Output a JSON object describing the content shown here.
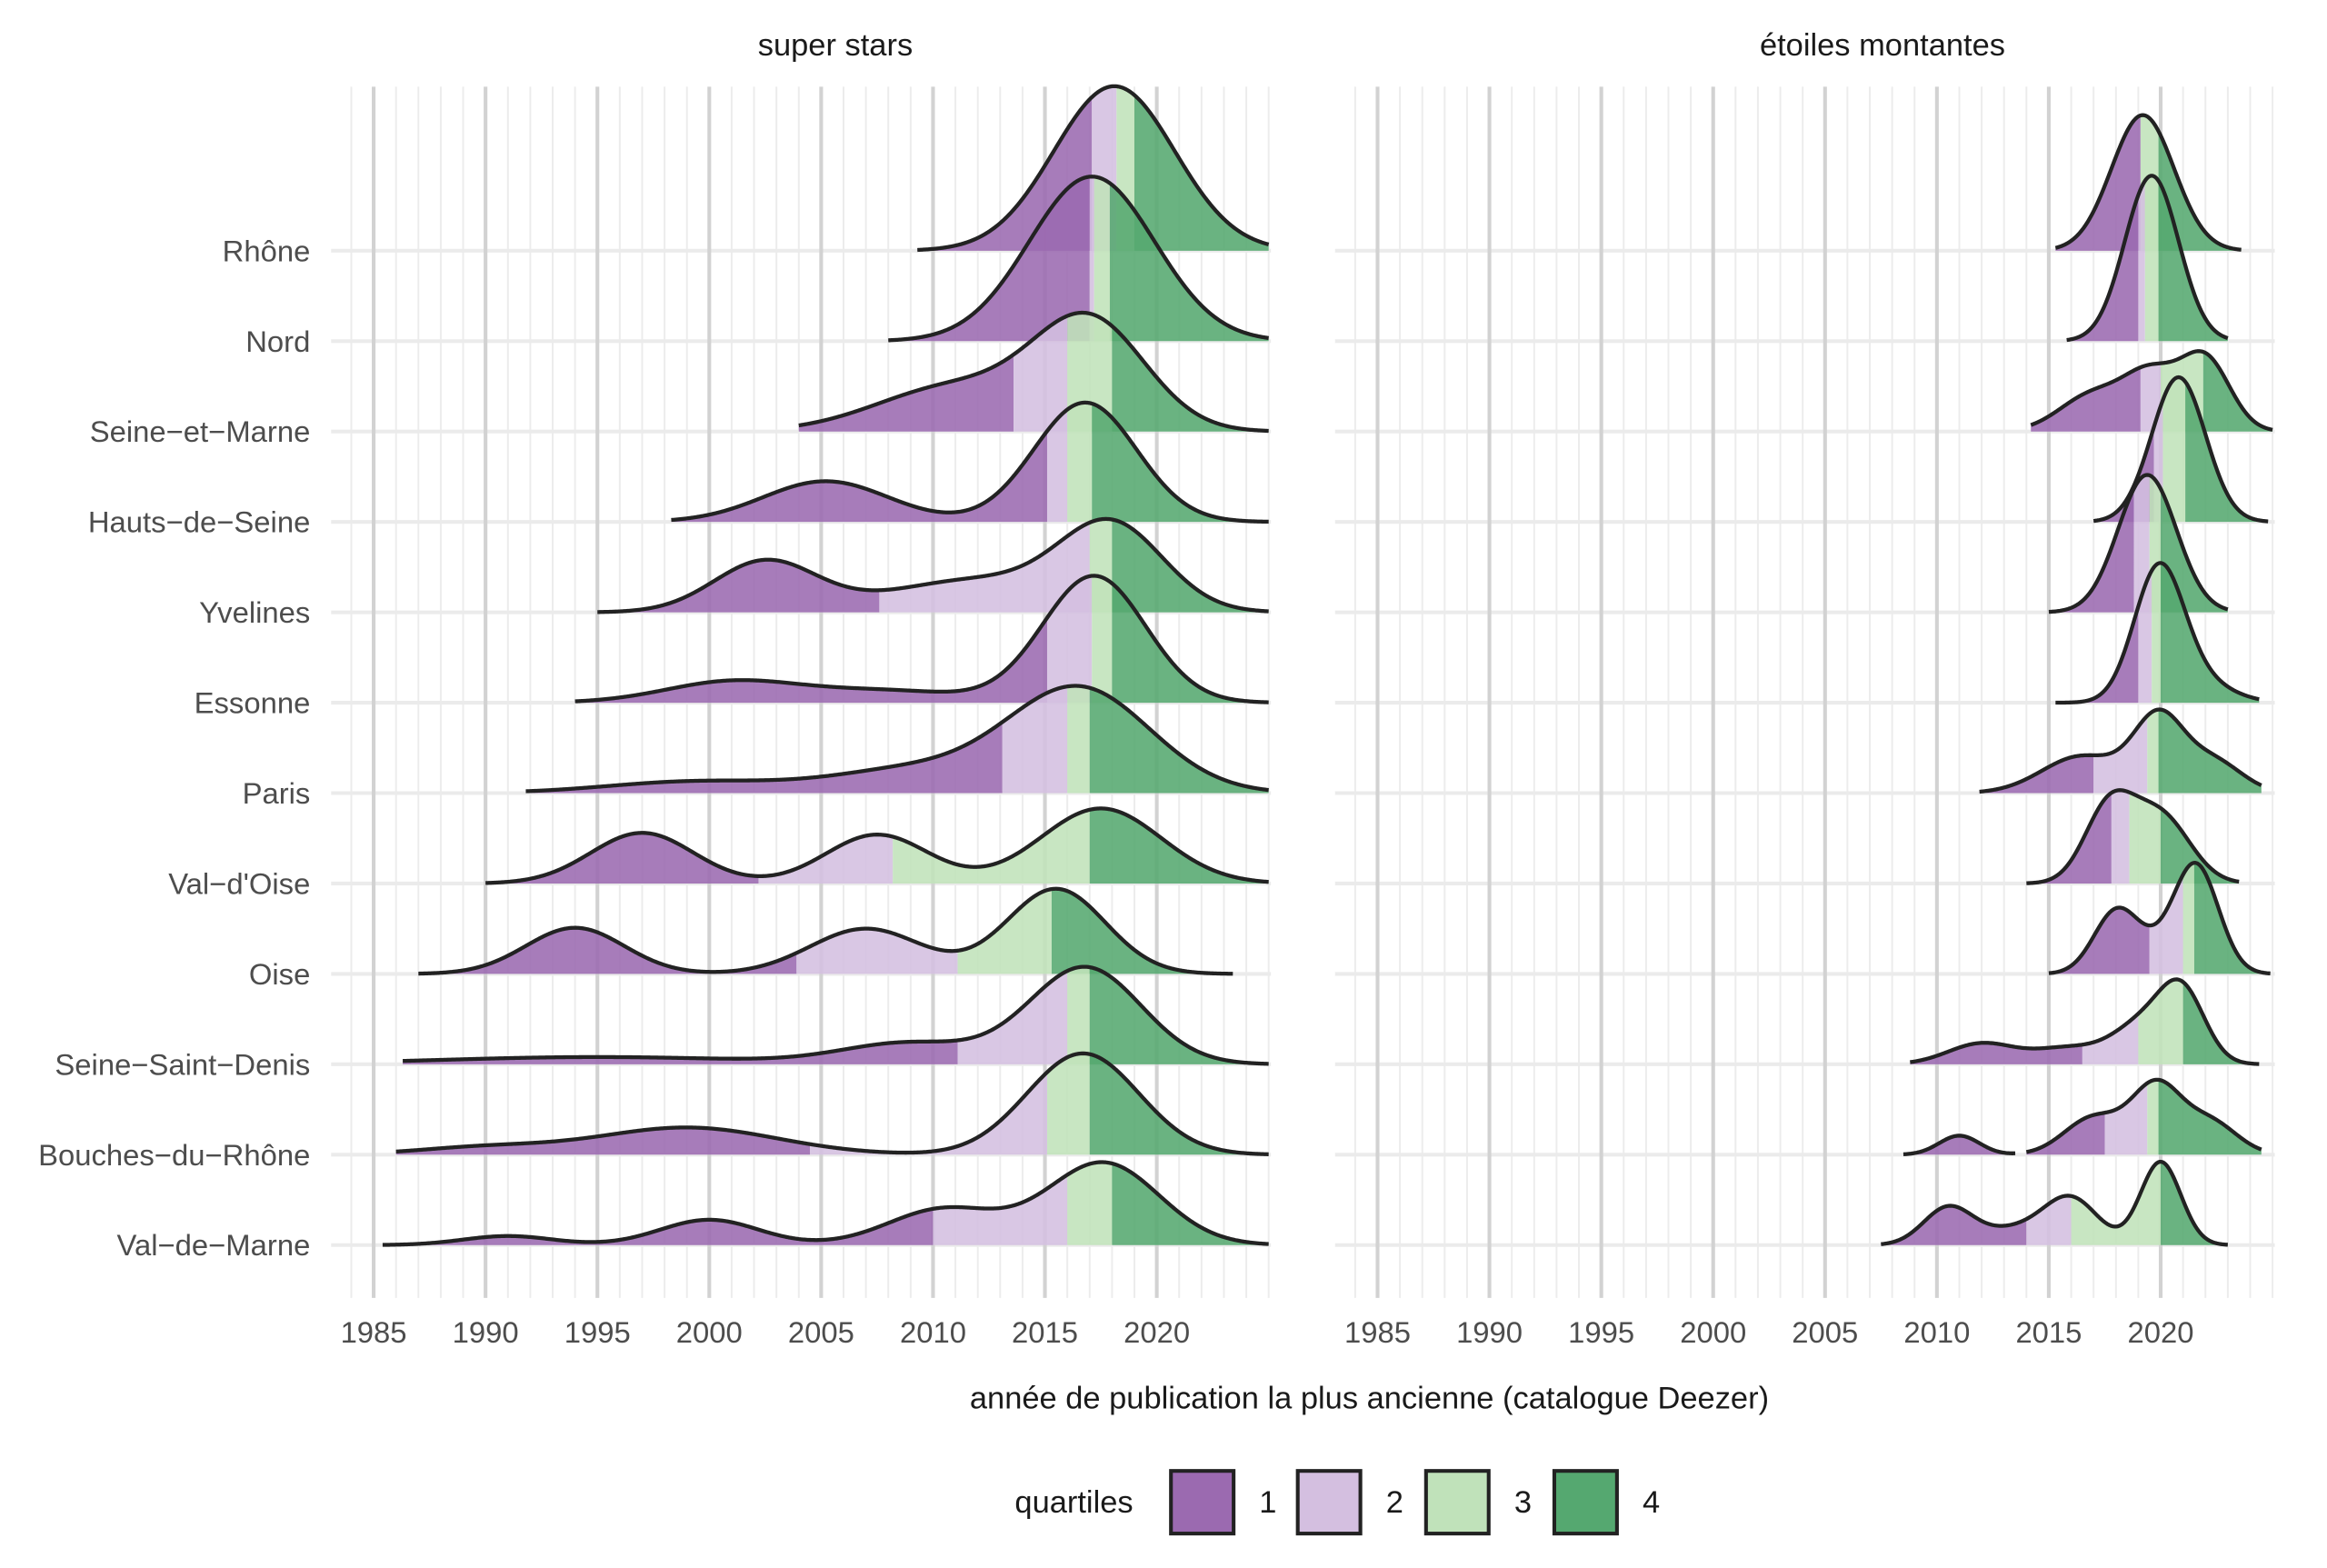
{
  "chart_data": {
    "type": "ridgeline",
    "xlabel": "année de publication la plus ancienne (catalogue Deezer)",
    "ylabel": "",
    "xlim": [
      1983.1,
      2025.1
    ],
    "x_ticks": [
      1985,
      1990,
      1995,
      2000,
      2005,
      2010,
      2015,
      2020
    ],
    "grid": true,
    "legend": {
      "title": "quartiles",
      "position": "bottom",
      "entries": [
        {
          "label": "1",
          "color": "#9b6ab0"
        },
        {
          "label": "2",
          "color": "#d4bfe0"
        },
        {
          "label": "3",
          "color": "#c0e2ba"
        },
        {
          "label": "4",
          "color": "#55a870"
        }
      ]
    },
    "categories": [
      "Rhône",
      "Nord",
      "Seine−et−Marne",
      "Hauts−de−Seine",
      "Yvelines",
      "Essonne",
      "Paris",
      "Val−d'Oise",
      "Oise",
      "Seine−Saint−Denis",
      "Bouches−du−Rhône",
      "Val−de−Marne"
    ],
    "panels": [
      {
        "title": "super stars",
        "ridges": [
          {
            "range": [
              [
                2009.3,
                2025
              ]
            ],
            "quartiles": [
              2017.1,
              2018.2,
              2019.0
            ],
            "components": [
              [
                2018.1,
                2.7,
                1.82
              ]
            ]
          },
          {
            "range": [
              [
                2008,
                2025
              ]
            ],
            "quartiles": [
              2017.0,
              2017.2,
              2017.9
            ],
            "components": [
              [
                2017.1,
                2.8,
                1.82
              ]
            ]
          },
          {
            "range": [
              [
                2004,
                2025
              ]
            ],
            "quartiles": [
              2013.6,
              2016.0,
              2018.0
            ],
            "components": [
              [
                2017,
                2.5,
                1.19
              ],
              [
                2011,
                3.5,
                0.5
              ]
            ]
          },
          {
            "range": [
              [
                1998.3,
                2025
              ]
            ],
            "quartiles": [
              2015.1,
              2016.0,
              2017.1
            ],
            "components": [
              [
                2016.8,
                2.3,
                1.32
              ],
              [
                2005.2,
                2.8,
                0.45
              ]
            ]
          },
          {
            "range": [
              [
                1995,
                2025
              ]
            ],
            "quartiles": [
              2007.6,
              2017.0,
              2018.0
            ],
            "components": [
              [
                2018,
                2.3,
                0.91
              ],
              [
                2002.5,
                2.3,
                0.56
              ],
              [
                2012,
                4,
                0.36
              ]
            ]
          },
          {
            "range": [
              [
                1994,
                2025
              ]
            ],
            "quartiles": [
              2015.1,
              2017.1,
              2018.0
            ],
            "components": [
              [
                2017.2,
                2.3,
                1.4
              ],
              [
                2001,
                3,
                0.23
              ],
              [
                2008,
                3.5,
                0.13
              ]
            ]
          },
          {
            "range": [
              [
                1991.8,
                2025
              ]
            ],
            "quartiles": [
              2013.1,
              2016.0,
              2017.0
            ],
            "components": [
              [
                2016.5,
                3.2,
                1.16
              ],
              [
                2009,
                3.5,
                0.25
              ],
              [
                1999.5,
                4,
                0.13
              ]
            ]
          },
          {
            "range": [
              [
                1990,
                2025
              ]
            ],
            "quartiles": [
              2002.2,
              2008.2,
              2017.0
            ],
            "components": [
              [
                1997,
                2.3,
                0.56
              ],
              [
                2007.5,
                2.3,
                0.54
              ],
              [
                2017.5,
                2.7,
                0.83
              ]
            ]
          },
          {
            "range": [
              [
                1987,
                2023.4
              ]
            ],
            "quartiles": [
              2003.9,
              2011.1,
              2015.3
            ],
            "components": [
              [
                1994,
                2.2,
                0.51
              ],
              [
                2007,
                2.5,
                0.5
              ],
              [
                2015.5,
                2.2,
                0.94
              ]
            ]
          },
          {
            "range": [
              [
                1986.3,
                2025
              ]
            ],
            "quartiles": [
              2011.1,
              2016.0,
              2017.0
            ],
            "components": [
              [
                2016.8,
                2.5,
                1.07
              ],
              [
                2009,
                3,
                0.23
              ],
              [
                1995,
                7,
                0.08
              ]
            ]
          },
          {
            "range": [
              [
                1986,
                2025
              ]
            ],
            "quartiles": [
              2004.5,
              2015.1,
              2017.0
            ],
            "components": [
              [
                2016.7,
                2.5,
                1.12
              ],
              [
                1999,
                4,
                0.3
              ],
              [
                1990,
                3,
                0.08
              ]
            ]
          },
          {
            "range": [
              [
                1985.4,
                2025
              ]
            ],
            "quartiles": [
              2010.0,
              2016.0,
              2018.0
            ],
            "components": [
              [
                2017.6,
                2.5,
                0.91
              ],
              [
                2010.5,
                2.5,
                0.4
              ],
              [
                2000,
                2.2,
                0.28
              ],
              [
                1991,
                2,
                0.1
              ]
            ]
          }
        ]
      },
      {
        "title": "étoiles montantes",
        "ridges": [
          {
            "range": [
              [
                2015.3,
                2023.6
              ]
            ],
            "quartiles": [
              2019.1,
              2019.1,
              2019.9
            ],
            "components": [
              [
                2019.2,
                1.4,
                1.5
              ]
            ]
          },
          {
            "range": [
              [
                2015.8,
                2023
              ]
            ],
            "quartiles": [
              2019.0,
              2019.3,
              2019.9
            ],
            "components": [
              [
                2019.6,
                1.2,
                1.83
              ]
            ]
          },
          {
            "range": [
              [
                2014.2,
                2025
              ]
            ],
            "quartiles": [
              2019.1,
              2020.0,
              2021.9
            ],
            "components": [
              [
                2022,
                1.1,
                0.79
              ],
              [
                2019.6,
                1.2,
                0.58
              ],
              [
                2017,
                1.5,
                0.41
              ]
            ]
          },
          {
            "range": [
              [
                2017,
                2024.8
              ]
            ],
            "quartiles": [
              2019.7,
              2020.1,
              2021.1
            ],
            "components": [
              [
                2020.8,
                1.2,
                1.6
              ]
            ]
          },
          {
            "range": [
              [
                2015,
                2023
              ]
            ],
            "quartiles": [
              2018.8,
              2019.5,
              2020.0
            ],
            "components": [
              [
                2019.4,
                1.3,
                1.52
              ]
            ]
          },
          {
            "range": [
              [
                2015.3,
                2024.4
              ]
            ],
            "quartiles": [
              2019.0,
              2019.6,
              2020.0
            ],
            "components": [
              [
                2019.9,
                1.1,
                1.4
              ],
              [
                2021.5,
                1.5,
                0.25
              ]
            ]
          },
          {
            "range": [
              [
                2011.9,
                2024.5
              ]
            ],
            "quartiles": [
              2017.0,
              2019.4,
              2019.9
            ],
            "components": [
              [
                2019.9,
                1.1,
                0.79
              ],
              [
                2016.5,
                1.8,
                0.41
              ],
              [
                2022.3,
                1.3,
                0.36
              ]
            ]
          },
          {
            "range": [
              [
                2014,
                2023.5
              ]
            ],
            "quartiles": [
              2017.8,
              2018.6,
              2020.0
            ],
            "components": [
              [
                2017.7,
                1.1,
                0.83
              ],
              [
                2020,
                1.3,
                0.74
              ]
            ]
          },
          {
            "range": [
              [
                2015,
                2024.9
              ]
            ],
            "quartiles": [
              2019.5,
              2021.0,
              2021.5
            ],
            "components": [
              [
                2021.6,
                1.0,
                1.16
              ],
              [
                2018,
                1.0,
                0.66
              ],
              [
                2019.8,
                1.2,
                0.2
              ]
            ]
          },
          {
            "range": [
              [
                2008.8,
                2024.4
              ]
            ],
            "quartiles": [
              2016.5,
              2019.0,
              2021.0
            ],
            "components": [
              [
                2021,
                1.0,
                0.69
              ],
              [
                2019.3,
                1.4,
                0.46
              ],
              [
                2012,
                1.5,
                0.23
              ],
              [
                2015.8,
                1.5,
                0.17
              ]
            ]
          },
          {
            "range": [
              [
                2008.5,
                2013.5
              ],
              [
                2014,
                2024.5
              ]
            ],
            "quartiles": [
              2017.5,
              2019.4,
              2019.9
            ],
            "components": [
              [
                2011,
                0.9,
                0.21
              ],
              [
                2019.8,
                1.1,
                0.74
              ],
              [
                2017,
                1.3,
                0.41
              ],
              [
                2022.2,
                1.2,
                0.36
              ]
            ]
          },
          {
            "range": [
              [
                2007.5,
                2023
              ]
            ],
            "quartiles": [
              2014.0,
              2016.0,
              2020.0
            ],
            "components": [
              [
                2020,
                0.9,
                0.92
              ],
              [
                2016,
                1.2,
                0.5
              ],
              [
                2010.5,
                1.1,
                0.41
              ],
              [
                2013.5,
                1.5,
                0.17
              ]
            ]
          }
        ]
      }
    ]
  }
}
